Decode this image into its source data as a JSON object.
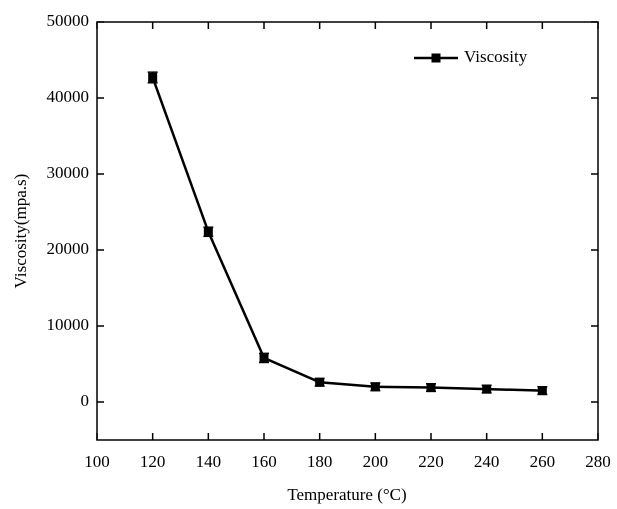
{
  "chart_data": {
    "type": "line",
    "x_label": "Temperature (°C)",
    "y_label": "Viscosity(mpa.s)",
    "x": [
      120,
      140,
      160,
      180,
      200,
      220,
      240,
      260
    ],
    "series": [
      {
        "name": "Viscosity",
        "color": "#000000",
        "values": [
          42700,
          22400,
          5800,
          2600,
          2000,
          1900,
          1700,
          1500
        ],
        "errors": [
          700,
          600,
          600,
          500,
          500,
          500,
          500,
          500
        ]
      }
    ],
    "xlim": [
      100,
      280
    ],
    "xticks": [
      100,
      120,
      140,
      160,
      180,
      200,
      220,
      240,
      260,
      280
    ],
    "ylim": [
      -5000,
      50000
    ],
    "yticks": [
      0,
      10000,
      20000,
      30000,
      40000,
      50000
    ],
    "grid": false,
    "legend": "upper right"
  }
}
